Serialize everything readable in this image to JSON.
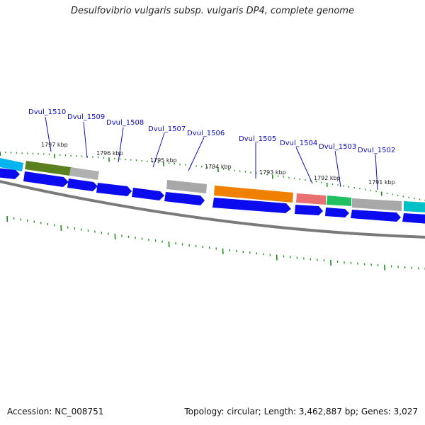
{
  "title": "Desulfovibrio vulgaris subsp. vulgaris DP4, complete genome",
  "footer": {
    "accession": "Accession: NC_008751",
    "topology": "Topology: circular; Length: 3,462,887 bp; Genes: 3,027"
  },
  "colors": {
    "strand_arrow": "#0b0bf0",
    "backbone": "#7a7a7a",
    "tick": "#1a8a1a",
    "label": "#0a0ac8"
  },
  "kbp_ticks": [
    "1797 kbp",
    "1796 kbp",
    "1795 kbp",
    "1794 kbp",
    "1793 kbp",
    "1792 kbp",
    "1791 kbp"
  ],
  "gene_labels": [
    "Dvul_1510",
    "Dvul_1509",
    "Dvul_1508",
    "Dvul_1507",
    "Dvul_1506",
    "Dvul_1505",
    "Dvul_1504",
    "Dvul_1503",
    "Dvul_1502"
  ],
  "feature_colors": [
    "#00b4f0",
    "#5a7f1e",
    "#b0b0b0",
    "#a8a8a8",
    "#f08000",
    "#e87070",
    "#20c060",
    "#a8a8a8",
    "#00c0c8"
  ]
}
